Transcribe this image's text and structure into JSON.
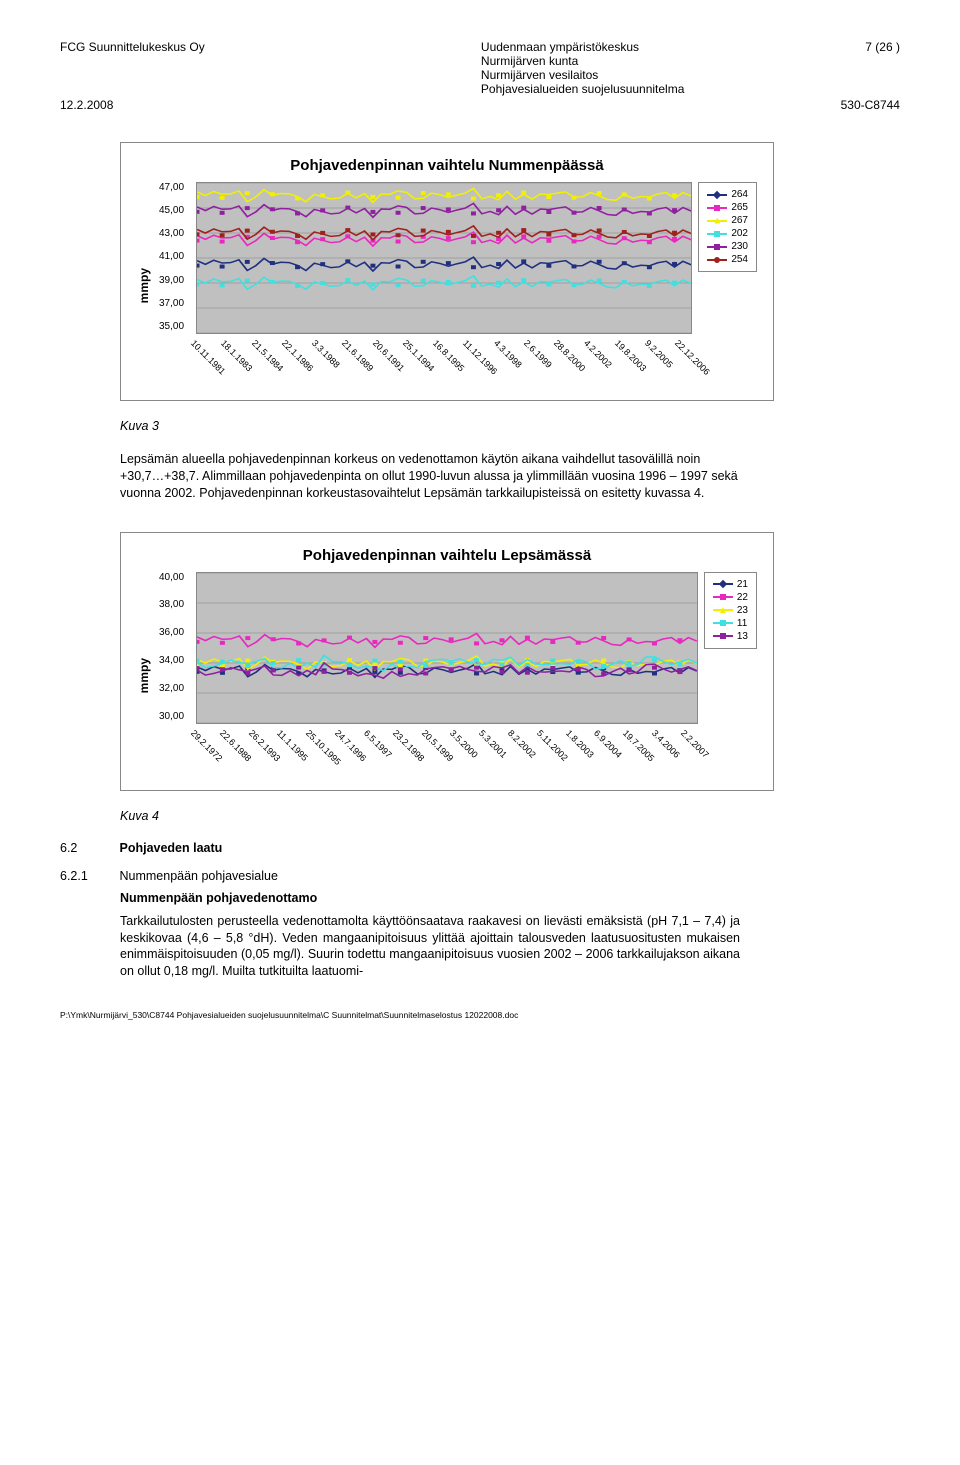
{
  "header": {
    "company": "FCG Suunnittelukeskus Oy",
    "date": "12.2.2008",
    "org1": "Uudenmaan ympäristökeskus",
    "org2": "Nurmijärven kunta",
    "org3": "Nurmijärven vesilaitos",
    "doc": "Pohjavesialueiden suojelusuunnitelma",
    "page": "7 (26 )",
    "code": "530-C8744"
  },
  "chart1": {
    "type": "line",
    "title": "Pohjavedenpinnan vaihtelu Nummenpäässä",
    "ylabel": "mmpy",
    "ylim": [
      35,
      47
    ],
    "ytick_step": 2,
    "yticks": [
      "47,00",
      "45,00",
      "43,00",
      "41,00",
      "39,00",
      "37,00",
      "35,00"
    ],
    "xticks": [
      "10.11.1981",
      "18.1.1983",
      "21.5.1984",
      "22.1.1986",
      "3.3.1988",
      "21.6.1989",
      "20.6.1991",
      "25.1.1994",
      "16.8.1995",
      "11.12.1996",
      "4.3.1998",
      "2.6.1999",
      "28.8.2000",
      "4.2.2002",
      "19.8.2003",
      "9.2.2005",
      "22.12.2006"
    ],
    "series": [
      {
        "label": "264",
        "color": "#203080",
        "marker": "diamond",
        "y": 40.5
      },
      {
        "label": "265",
        "color": "#e828c0",
        "marker": "square",
        "y": 42.5
      },
      {
        "label": "267",
        "color": "#f0f000",
        "marker": "triangle",
        "y": 46.0
      },
      {
        "label": "202",
        "color": "#40e0e0",
        "marker": "x",
        "y": 39.0
      },
      {
        "label": "230",
        "color": "#9020a0",
        "marker": "star",
        "y": 44.8
      },
      {
        "label": "254",
        "color": "#a02020",
        "marker": "circle",
        "y": 43.0
      }
    ],
    "background_color": "#c0c0c0",
    "grid_color": "#808080",
    "border_color": "#888888"
  },
  "kuva3": "Kuva 3",
  "para1": "Lepsämän alueella pohjavedenpinnan korkeus on vedenottamon käytön aikana vaihdellut tasovälillä noin +30,7…+38,7. Alimmillaan pohjavedenpinta on ollut 1990-luvun alussa ja ylimmillään vuosina 1996 – 1997 sekä vuonna 2002.  Pohjavedenpinnan korkeustasovaihtelut Lepsämän tarkkailupisteissä on esitetty kuvassa 4.",
  "chart2": {
    "type": "line",
    "title": "Pohjavedenpinnan vaihtelu Lepsämässä",
    "ylabel": "mmpy",
    "ylim": [
      30,
      40
    ],
    "ytick_step": 2,
    "yticks": [
      "40,00",
      "38,00",
      "36,00",
      "34,00",
      "32,00",
      "30,00"
    ],
    "xticks": [
      "29.2.1972",
      "22.6.1988",
      "26.2.1993",
      "11.1.1995",
      "25.10.1995",
      "24.7.1996",
      "6.5.1997",
      "23.2.1998",
      "20.5.1999",
      "3.5.2000",
      "5.3.2001",
      "8.2.2002",
      "5.11.2002",
      "1.8.2003",
      "6.9.2004",
      "19.7.2005",
      "3.4.2006",
      "2.2.2007"
    ],
    "series": [
      {
        "label": "21",
        "color": "#203080",
        "marker": "diamond",
        "y": 33.5
      },
      {
        "label": "22",
        "color": "#e828c0",
        "marker": "square",
        "y": 35.5
      },
      {
        "label": "23",
        "color": "#f0f000",
        "marker": "triangle",
        "y": 34.0
      },
      {
        "label": "11",
        "color": "#40e0e0",
        "marker": "x",
        "y": 34.0
      },
      {
        "label": "13",
        "color": "#9020a0",
        "marker": "star",
        "y": 33.5
      }
    ],
    "background_color": "#c0c0c0",
    "grid_color": "#808080",
    "border_color": "#888888"
  },
  "kuva4": "Kuva 4",
  "sec62": {
    "num": "6.2",
    "title": "Pohjaveden laatu",
    "bold": true
  },
  "sec621": {
    "num": "6.2.1",
    "title": "Nummenpään pohjavesialue",
    "bold": false
  },
  "subhead": "Nummenpään pohjavedenottamo",
  "para2": "Tarkkailutulosten perusteella vedenottamolta käyttöönsaatava raakavesi on lievästi emäksistä (pH 7,1 – 7,4) ja keskikovaa (4,6 – 5,8 °dH). Veden mangaanipitoisuus ylittää ajoittain talousveden laatusuositusten mukaisen enimmäispitoisuuden (0,05 mg/l). Suurin todettu mangaanipitoisuus vuosien 2002 – 2006 tarkkailujakson aikana on ollut 0,18 mg/l. Muilta tutkituilta laatuomi-",
  "footer": "P:\\Ymk\\Nurmijärvi_530\\C8744 Pohjavesialueiden suojelusuunnitelma\\C Suunnitelmat\\Suunnitelmaselostus 12022008.doc"
}
